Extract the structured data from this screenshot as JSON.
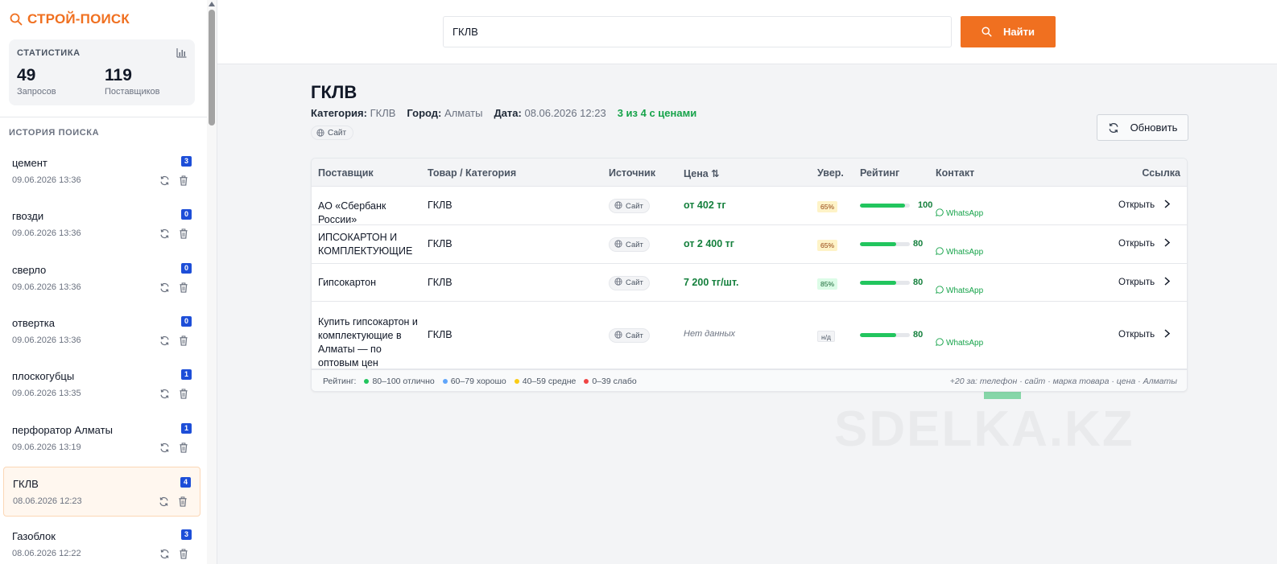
{
  "sidebar": {
    "brand": "СТРОЙ-ПОИСК",
    "stats": {
      "title": "СТАТИСТИКА",
      "requests_value": "49",
      "requests_label": "Запросов",
      "suppliers_value": "119",
      "suppliers_label": "Поставщиков"
    },
    "history_title": "ИСТОРИЯ ПОИСКА",
    "history": [
      {
        "query": "цемент",
        "date": "09.06.2026 13:36",
        "count": "3"
      },
      {
        "query": "гвозди",
        "date": "09.06.2026 13:36",
        "count": "0"
      },
      {
        "query": "сверло",
        "date": "09.06.2026 13:36",
        "count": "0"
      },
      {
        "query": "отвертка",
        "date": "09.06.2026 13:36",
        "count": "0"
      },
      {
        "query": "плоскогубцы",
        "date": "09.06.2026 13:35",
        "count": "1"
      },
      {
        "query": "перфоратор Алматы",
        "date": "09.06.2026 13:19",
        "count": "1"
      },
      {
        "query": "ГКЛВ",
        "date": "08.06.2026 12:23",
        "count": "4",
        "active": true
      },
      {
        "query": "Газоблок",
        "date": "08.06.2026 12:22",
        "count": "3"
      }
    ]
  },
  "search": {
    "value": "ГКЛВ",
    "button_label": "Найти"
  },
  "main": {
    "title": "ГКЛВ",
    "category_label": "Категория:",
    "category_value": "ГКЛВ",
    "city_label": "Город:",
    "city_value": "Алматы",
    "date_label": "Дата:",
    "date_value": "08.06.2026 12:23",
    "price_summary": "3 из 4 с ценами",
    "source_chip": "Сайт",
    "refresh_label": "Обновить"
  },
  "table": {
    "headers": {
      "supplier": "Поставщик",
      "product": "Товар / Категория",
      "source": "Источник",
      "price": "Цена ⇅",
      "confidence": "Увер.",
      "rating": "Рейтинг",
      "contact": "Контакт",
      "link": "Ссылка"
    },
    "rows": [
      {
        "supplier": "АО «Сбербанк России»",
        "product": "ГКЛВ",
        "source": "Сайт",
        "price": "от 402 тг",
        "confidence": "65%",
        "rating": 100,
        "rating_text": "100",
        "contact": "WhatsApp",
        "link": "Открыть"
      },
      {
        "supplier": "ИПСОКАРТОН И КОМПЛЕКТУЮЩИЕ",
        "product": "ГКЛВ",
        "source": "Сайт",
        "price": "от 2 400 тг",
        "confidence": "65%",
        "rating": 80,
        "rating_text": "80",
        "contact": "WhatsApp",
        "link": "Открыть"
      },
      {
        "supplier": "Гипсокартон",
        "product": "ГКЛВ",
        "source": "Сайт",
        "price": "7 200 тг/шт.",
        "confidence": "85%",
        "rating": 80,
        "rating_text": "80",
        "contact": "WhatsApp",
        "link": "Открыть"
      },
      {
        "supplier": "Купить гипсокартон и комплектующие в Алматы — по оптовым цен",
        "product": "ГКЛВ",
        "source": "Сайт",
        "price": "Нет данных",
        "confidence": "н/д",
        "rating": 80,
        "rating_text": "80",
        "contact": "WhatsApp",
        "link": "Открыть"
      }
    ],
    "legend": {
      "label": "Рейтинг:",
      "excellent": "80–100 отлично",
      "good": "60–79 хорошо",
      "average": "40–59 средне",
      "weak": "0–39 слабо",
      "note": "+20 за: телефон · сайт · марка товара · цена · Алматы"
    }
  },
  "watermark": "SDELKA.KZ",
  "colors": {
    "accent": "#f07020",
    "badge": "#1d4ed8",
    "good": "#22c55e",
    "price": "#15803d",
    "legend_excellent": "#22c55e",
    "legend_good": "#60a5fa",
    "legend_average": "#facc15",
    "legend_weak": "#ef4444"
  }
}
